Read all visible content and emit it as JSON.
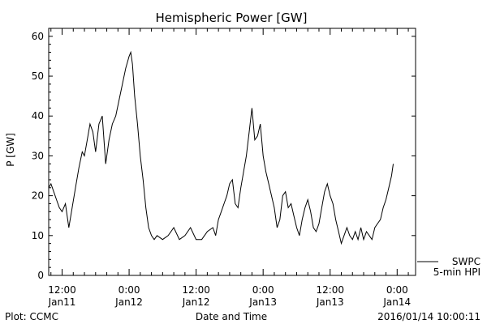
{
  "chart_data": {
    "type": "line",
    "title": "Hemispheric Power [GW]",
    "ylabel": "P [GW]",
    "xlabel": "Date and Time",
    "x_unit": "hours since first tick (Jan11 12:00)",
    "xlim": [
      -2.4,
      63.3
    ],
    "ylim": [
      0,
      62
    ],
    "y_ticks": [
      0,
      10,
      20,
      30,
      40,
      50,
      60
    ],
    "x_ticks": [
      {
        "x": 0,
        "time": "12:00",
        "date": "Jan11"
      },
      {
        "x": 12,
        "time": "0:00",
        "date": "Jan12"
      },
      {
        "x": 24,
        "time": "12:00",
        "date": "Jan12"
      },
      {
        "x": 36,
        "time": "0:00",
        "date": "Jan13"
      },
      {
        "x": 48,
        "time": "12:00",
        "date": "Jan13"
      },
      {
        "x": 60,
        "time": "0:00",
        "date": "Jan14"
      }
    ],
    "grid": false,
    "series": [
      {
        "name": "5-min HPI",
        "color": "#000000",
        "points": [
          [
            -2.4,
            22
          ],
          [
            -2.0,
            23
          ],
          [
            -1.5,
            21
          ],
          [
            -1.0,
            19
          ],
          [
            -0.5,
            17
          ],
          [
            0.0,
            16
          ],
          [
            0.6,
            18
          ],
          [
            1.2,
            12
          ],
          [
            1.8,
            17
          ],
          [
            2.4,
            22
          ],
          [
            3.0,
            27
          ],
          [
            3.6,
            31
          ],
          [
            4.0,
            30
          ],
          [
            4.5,
            34
          ],
          [
            5.0,
            38
          ],
          [
            5.5,
            36
          ],
          [
            6.0,
            31
          ],
          [
            6.6,
            38
          ],
          [
            7.2,
            40
          ],
          [
            7.8,
            28
          ],
          [
            8.4,
            34
          ],
          [
            9.0,
            38
          ],
          [
            9.6,
            40
          ],
          [
            10.2,
            44
          ],
          [
            10.8,
            48
          ],
          [
            11.4,
            52
          ],
          [
            12.0,
            55
          ],
          [
            12.3,
            56
          ],
          [
            12.6,
            53
          ],
          [
            13.0,
            45
          ],
          [
            13.5,
            38
          ],
          [
            14.0,
            30
          ],
          [
            14.5,
            24
          ],
          [
            15.0,
            17
          ],
          [
            15.5,
            12
          ],
          [
            16.0,
            10
          ],
          [
            16.5,
            9
          ],
          [
            17.0,
            10
          ],
          [
            18.0,
            9
          ],
          [
            19.0,
            10
          ],
          [
            20.0,
            12
          ],
          [
            21.0,
            9
          ],
          [
            22.0,
            10
          ],
          [
            23.0,
            12
          ],
          [
            24.0,
            9
          ],
          [
            25.0,
            9
          ],
          [
            26.0,
            11
          ],
          [
            27.0,
            12
          ],
          [
            27.5,
            10
          ],
          [
            28.0,
            14
          ],
          [
            28.5,
            16
          ],
          [
            29.0,
            18
          ],
          [
            29.5,
            20
          ],
          [
            30.0,
            23
          ],
          [
            30.5,
            24
          ],
          [
            31.0,
            18
          ],
          [
            31.5,
            17
          ],
          [
            32.0,
            22
          ],
          [
            32.5,
            26
          ],
          [
            33.0,
            30
          ],
          [
            33.5,
            36
          ],
          [
            34.0,
            42
          ],
          [
            34.5,
            34
          ],
          [
            35.0,
            35
          ],
          [
            35.5,
            38
          ],
          [
            36.0,
            30
          ],
          [
            36.5,
            26
          ],
          [
            37.0,
            23
          ],
          [
            37.5,
            20
          ],
          [
            38.0,
            17
          ],
          [
            38.5,
            12
          ],
          [
            39.0,
            14
          ],
          [
            39.5,
            20
          ],
          [
            40.0,
            21
          ],
          [
            40.5,
            17
          ],
          [
            41.0,
            18
          ],
          [
            41.5,
            15
          ],
          [
            42.0,
            12
          ],
          [
            42.5,
            10
          ],
          [
            43.0,
            14
          ],
          [
            43.5,
            17
          ],
          [
            44.0,
            19
          ],
          [
            44.5,
            16
          ],
          [
            45.0,
            12
          ],
          [
            45.5,
            11
          ],
          [
            46.0,
            13
          ],
          [
            46.5,
            17
          ],
          [
            47.0,
            21
          ],
          [
            47.5,
            23
          ],
          [
            48.0,
            20
          ],
          [
            48.5,
            18
          ],
          [
            49.0,
            14
          ],
          [
            49.5,
            11
          ],
          [
            50.0,
            8
          ],
          [
            50.5,
            10
          ],
          [
            51.0,
            12
          ],
          [
            51.5,
            10
          ],
          [
            52.0,
            9
          ],
          [
            52.5,
            11
          ],
          [
            53.0,
            9
          ],
          [
            53.5,
            12
          ],
          [
            54.0,
            9
          ],
          [
            54.5,
            11
          ],
          [
            55.0,
            10
          ],
          [
            55.5,
            9
          ],
          [
            56.0,
            12
          ],
          [
            56.5,
            13
          ],
          [
            57.0,
            14
          ],
          [
            57.5,
            17
          ],
          [
            58.0,
            19
          ],
          [
            58.5,
            22
          ],
          [
            59.0,
            25
          ],
          [
            59.3,
            28
          ]
        ]
      }
    ],
    "legend": {
      "position": "bottom-right",
      "entries": [
        "SWPC",
        "5-min HPI"
      ]
    }
  },
  "footer": {
    "left": "Plot: CCMC",
    "right": "2016/01/14 10:00:11"
  }
}
